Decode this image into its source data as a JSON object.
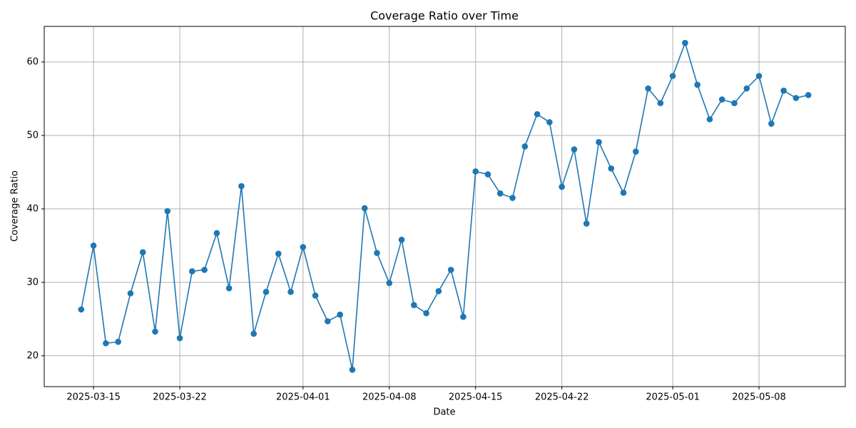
{
  "chart_data": {
    "type": "line",
    "title": "Coverage Ratio over Time",
    "x_label": "Date",
    "y_label": "Coverage Ratio",
    "x": [
      "2025-03-14",
      "2025-03-15",
      "2025-03-16",
      "2025-03-17",
      "2025-03-18",
      "2025-03-19",
      "2025-03-20",
      "2025-03-21",
      "2025-03-22",
      "2025-03-23",
      "2025-03-24",
      "2025-03-25",
      "2025-03-26",
      "2025-03-27",
      "2025-03-28",
      "2025-03-29",
      "2025-03-30",
      "2025-03-31",
      "2025-04-01",
      "2025-04-02",
      "2025-04-03",
      "2025-04-04",
      "2025-04-05",
      "2025-04-06",
      "2025-04-07",
      "2025-04-08",
      "2025-04-09",
      "2025-04-10",
      "2025-04-11",
      "2025-04-12",
      "2025-04-13",
      "2025-04-14",
      "2025-04-15",
      "2025-04-16",
      "2025-04-17",
      "2025-04-18",
      "2025-04-19",
      "2025-04-20",
      "2025-04-21",
      "2025-04-22",
      "2025-04-23",
      "2025-04-24",
      "2025-04-25",
      "2025-04-26",
      "2025-04-27",
      "2025-04-28",
      "2025-04-29",
      "2025-04-30",
      "2025-05-01",
      "2025-05-02",
      "2025-05-03",
      "2025-05-04",
      "2025-05-05",
      "2025-05-06",
      "2025-05-07",
      "2025-05-08",
      "2025-05-09",
      "2025-05-10",
      "2025-05-11",
      "2025-05-12"
    ],
    "series": [
      {
        "name": "Coverage Ratio",
        "color": "#1f77b4",
        "values": [
          26.3,
          35,
          21.7,
          21.9,
          28.5,
          34.1,
          23.3,
          39.7,
          22.4,
          31.5,
          31.7,
          36.7,
          29.2,
          43.1,
          23,
          28.7,
          33.9,
          28.7,
          34.8,
          28.2,
          24.7,
          25.6,
          18.1,
          40.1,
          34,
          29.9,
          35.8,
          26.9,
          25.8,
          28.8,
          31.7,
          25.3,
          45.1,
          44.7,
          42.1,
          41.5,
          48.5,
          52.9,
          51.8,
          43,
          48.1,
          38,
          49.1,
          45.5,
          42.2,
          47.8,
          56.4,
          54.4,
          58.1,
          62.6,
          56.9,
          52.2,
          54.9,
          54.4,
          56.4,
          58.1,
          51.6,
          56.1,
          55.1,
          55.5
        ]
      }
    ],
    "xlim": [
      "2025-03-11",
      "2025-05-15"
    ],
    "xticks": [
      "2025-03-15",
      "2025-03-22",
      "2025-04-01",
      "2025-04-08",
      "2025-04-15",
      "2025-04-22",
      "2025-05-01",
      "2025-05-08"
    ],
    "ylim": [
      15.8,
      64.85
    ],
    "yticks": [
      20,
      30,
      40,
      50,
      60
    ],
    "grid": true
  }
}
